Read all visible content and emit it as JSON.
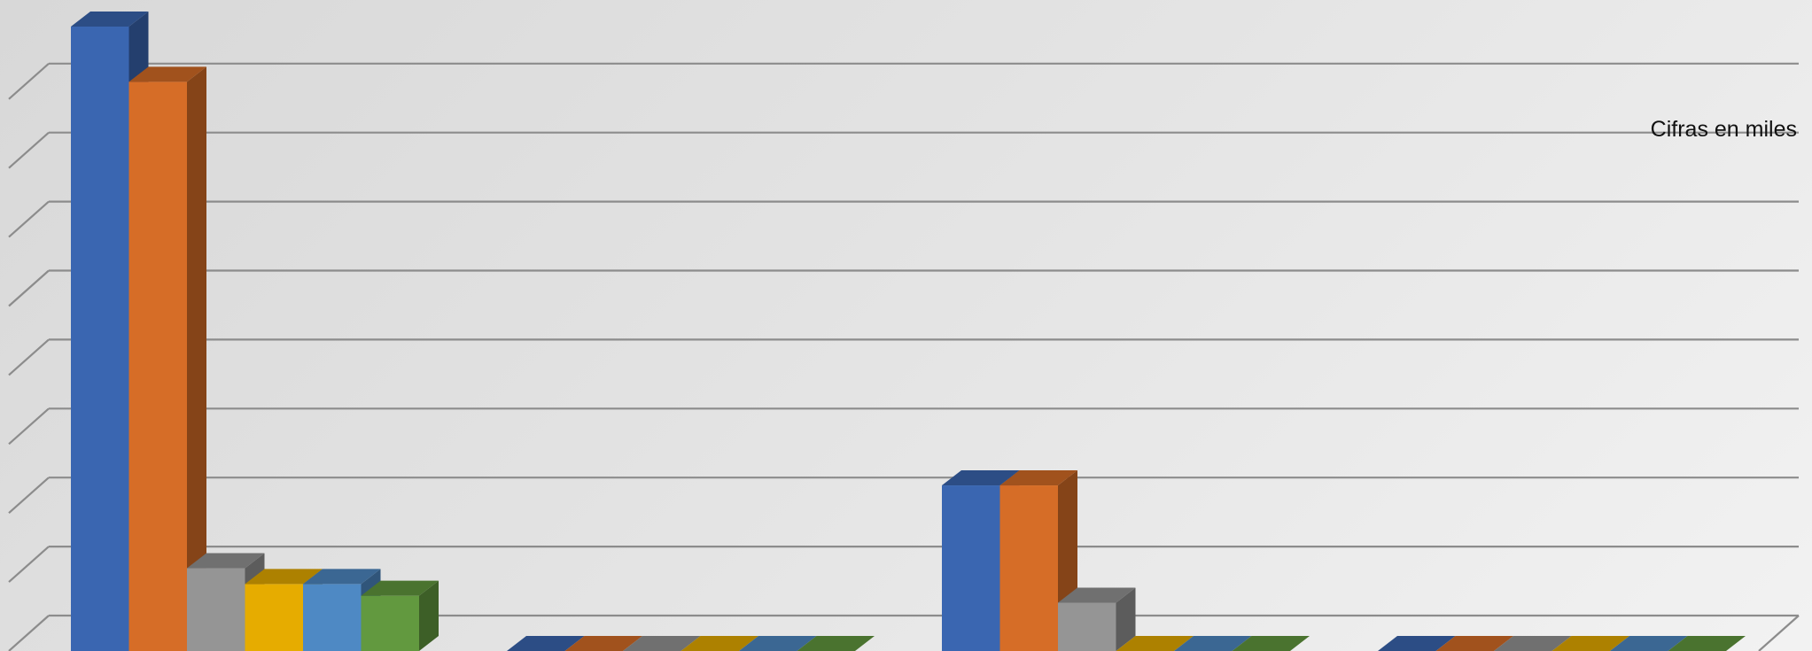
{
  "chart_data": {
    "type": "bar",
    "style": "3d-clustered-column",
    "title": "",
    "xlabel": "",
    "ylabel": "",
    "annotation": "Cifras en miles",
    "grid": true,
    "legend": "none",
    "ylim": [
      0,
      9.5
    ],
    "groups": 4,
    "series": [
      {
        "color": "#3a66b1",
        "values": [
          9.05,
          0,
          2.4,
          0
        ]
      },
      {
        "color": "#d66d27",
        "values": [
          8.25,
          0,
          2.4,
          0
        ]
      },
      {
        "color": "#959595",
        "values": [
          1.2,
          0,
          0.7,
          0
        ]
      },
      {
        "color": "#e6ac00",
        "values": [
          0.97,
          0,
          0,
          0
        ]
      },
      {
        "color": "#4e89c4",
        "values": [
          0.97,
          0,
          0,
          0
        ]
      },
      {
        "color": "#62993f",
        "values": [
          0.8,
          0,
          0,
          0
        ]
      }
    ]
  }
}
